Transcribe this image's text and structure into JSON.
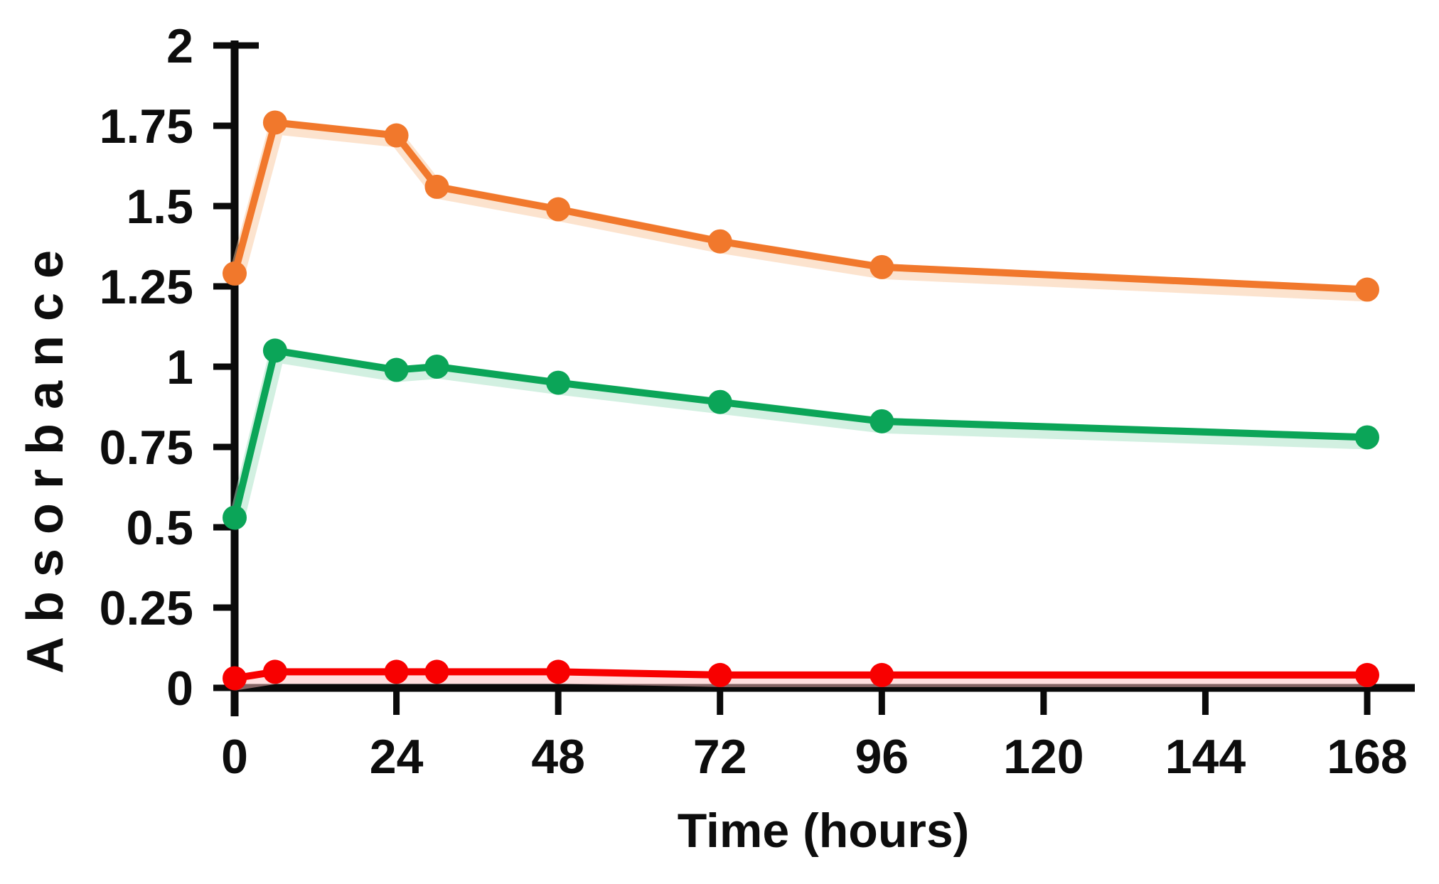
{
  "page": {
    "background": "#ffffff"
  },
  "chart_data": {
    "type": "line",
    "title": "",
    "xlabel": "Time (hours)",
    "ylabel": "Absorbance",
    "x": [
      0,
      6,
      24,
      30,
      48,
      72,
      96,
      168
    ],
    "series": [
      {
        "name": "orange",
        "color": "#F1782C",
        "halo_color": "#FAC89E",
        "values": [
          1.29,
          1.76,
          1.72,
          1.56,
          1.49,
          1.39,
          1.31,
          1.24
        ]
      },
      {
        "name": "green",
        "color": "#0BA558",
        "halo_color": "#A5E2C3",
        "values": [
          0.53,
          1.05,
          0.99,
          1.0,
          0.95,
          0.89,
          0.83,
          0.78
        ]
      },
      {
        "name": "red",
        "color": "#F80000",
        "halo_color": "#FFBFBF",
        "values": [
          0.03,
          0.05,
          0.05,
          0.05,
          0.05,
          0.04,
          0.04,
          0.04
        ]
      }
    ],
    "x_ticks": [
      0,
      24,
      48,
      72,
      96,
      120,
      144,
      168
    ],
    "x_tick_labels": [
      "0",
      "24",
      "48",
      "72",
      "96",
      "120",
      "144",
      "168"
    ],
    "y_ticks": [
      0,
      0.25,
      0.5,
      0.75,
      1,
      1.25,
      1.5,
      1.75,
      2
    ],
    "y_tick_labels": [
      "0",
      "0.25",
      "0.5",
      "0.75",
      "1",
      "1.25",
      "1.5",
      "1.75",
      "2"
    ],
    "xlim": [
      0,
      175
    ],
    "ylim": [
      0,
      2
    ],
    "grid": false,
    "legend": "none",
    "marker": "circle",
    "axis_color": "#0a0a0a",
    "text_color": "#0d0d0d"
  }
}
